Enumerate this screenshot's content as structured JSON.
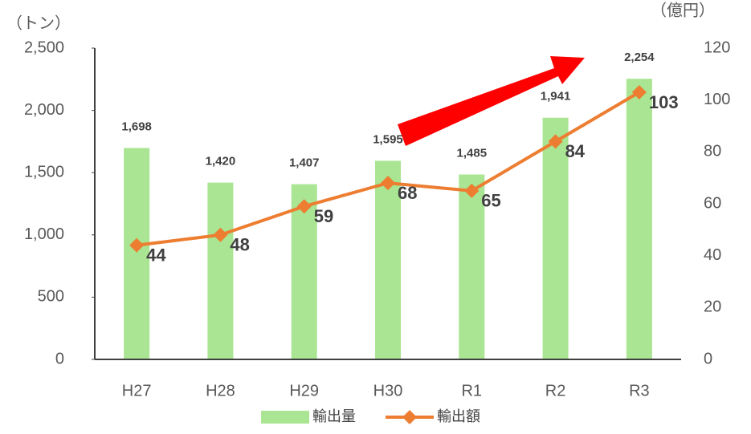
{
  "chart_data": {
    "type": "bar",
    "categories": [
      "H27",
      "H28",
      "H29",
      "H30",
      "R1",
      "R2",
      "R3"
    ],
    "ylabel": "（トン）",
    "y2label": "（億円）",
    "series": [
      {
        "name": "輸出量",
        "color": "#a9e592",
        "values": [
          1698,
          1420,
          1407,
          1595,
          1485,
          1941,
          2254
        ],
        "value_labels": [
          "1,698",
          "1,420",
          "1,407",
          "1,595",
          "1,485",
          "1,941",
          "2,254"
        ]
      },
      {
        "name": "輸出額",
        "type": "line",
        "axis": "y2",
        "color": "#ed7d31",
        "values": [
          44,
          48,
          59,
          68,
          65,
          84,
          103
        ]
      }
    ],
    "ylim": [
      0,
      2500
    ],
    "yticks": [
      0,
      500,
      {
        "value": 1000,
        "label": "1,000"
      },
      {
        "value": 1500,
        "label": "1,500"
      },
      {
        "value": 2000,
        "label": "2,000"
      },
      {
        "value": 2500,
        "label": "2,500"
      }
    ],
    "y2lim": [
      0,
      120
    ],
    "y2ticks": [
      0,
      20,
      40,
      60,
      80,
      100,
      120
    ],
    "legend": "bottom"
  }
}
